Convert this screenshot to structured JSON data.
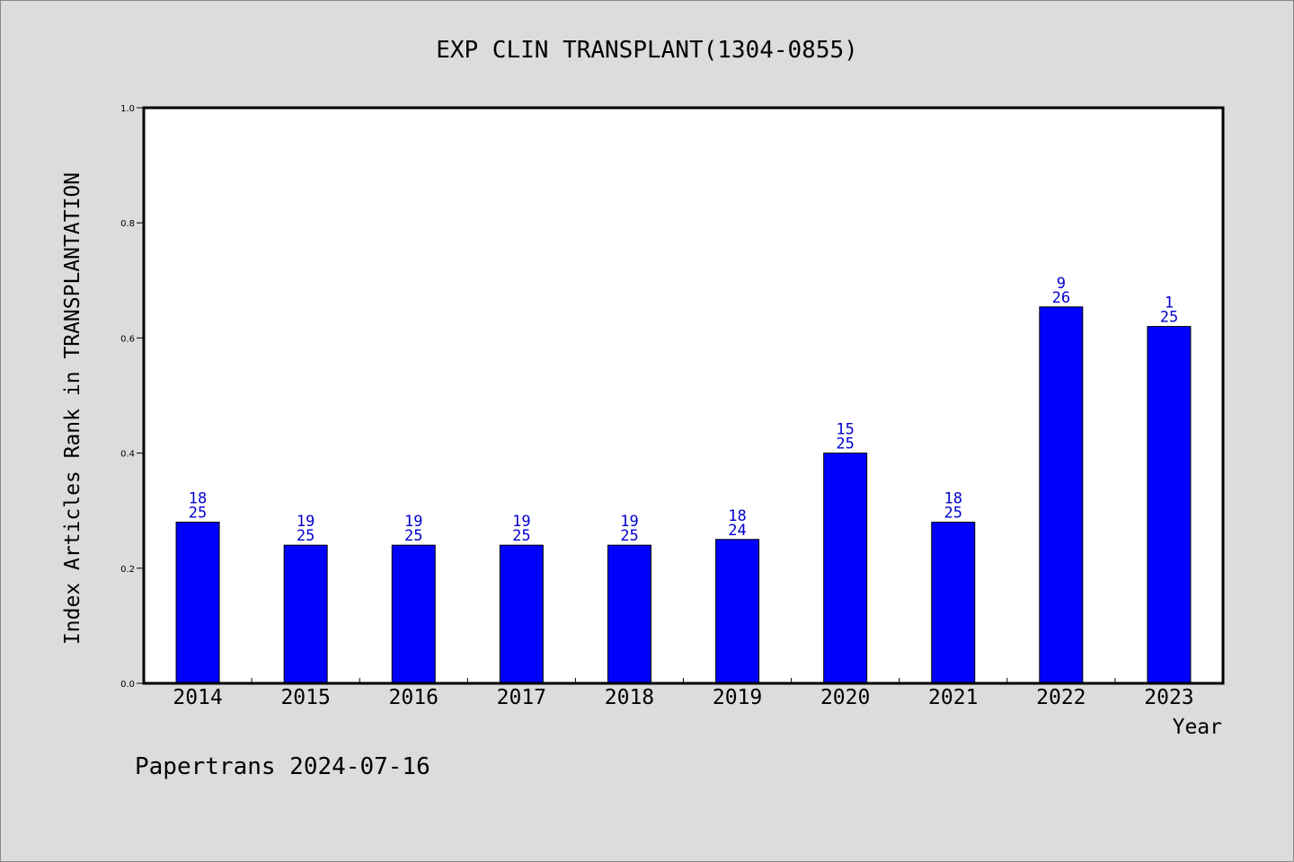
{
  "chart_data": {
    "type": "bar",
    "title": "EXP CLIN TRANSPLANT(1304-0855)",
    "xlabel": "Year",
    "ylabel": "Index Articles Rank in TRANSPLANTATION",
    "ylim": [
      0,
      1
    ],
    "yticks": [
      "0.0",
      "0.2",
      "0.4",
      "0.6",
      "0.8",
      "1.0"
    ],
    "categories": [
      "2014",
      "2015",
      "2016",
      "2017",
      "2018",
      "2019",
      "2020",
      "2021",
      "2022",
      "2023"
    ],
    "values": [
      0.28,
      0.24,
      0.24,
      0.24,
      0.24,
      0.25,
      0.4,
      0.28,
      0.654,
      0.62
    ],
    "labels_top": [
      "18",
      "19",
      "19",
      "19",
      "19",
      "18",
      "15",
      "18",
      "9",
      "1"
    ],
    "labels_bottom": [
      "25",
      "25",
      "25",
      "25",
      "25",
      "24",
      "25",
      "25",
      "26",
      "25"
    ],
    "bar_color": "#0000ff",
    "label_color": "#0000cc",
    "grid": false,
    "legend": "none"
  },
  "footer": "Papertrans 2024-07-16"
}
